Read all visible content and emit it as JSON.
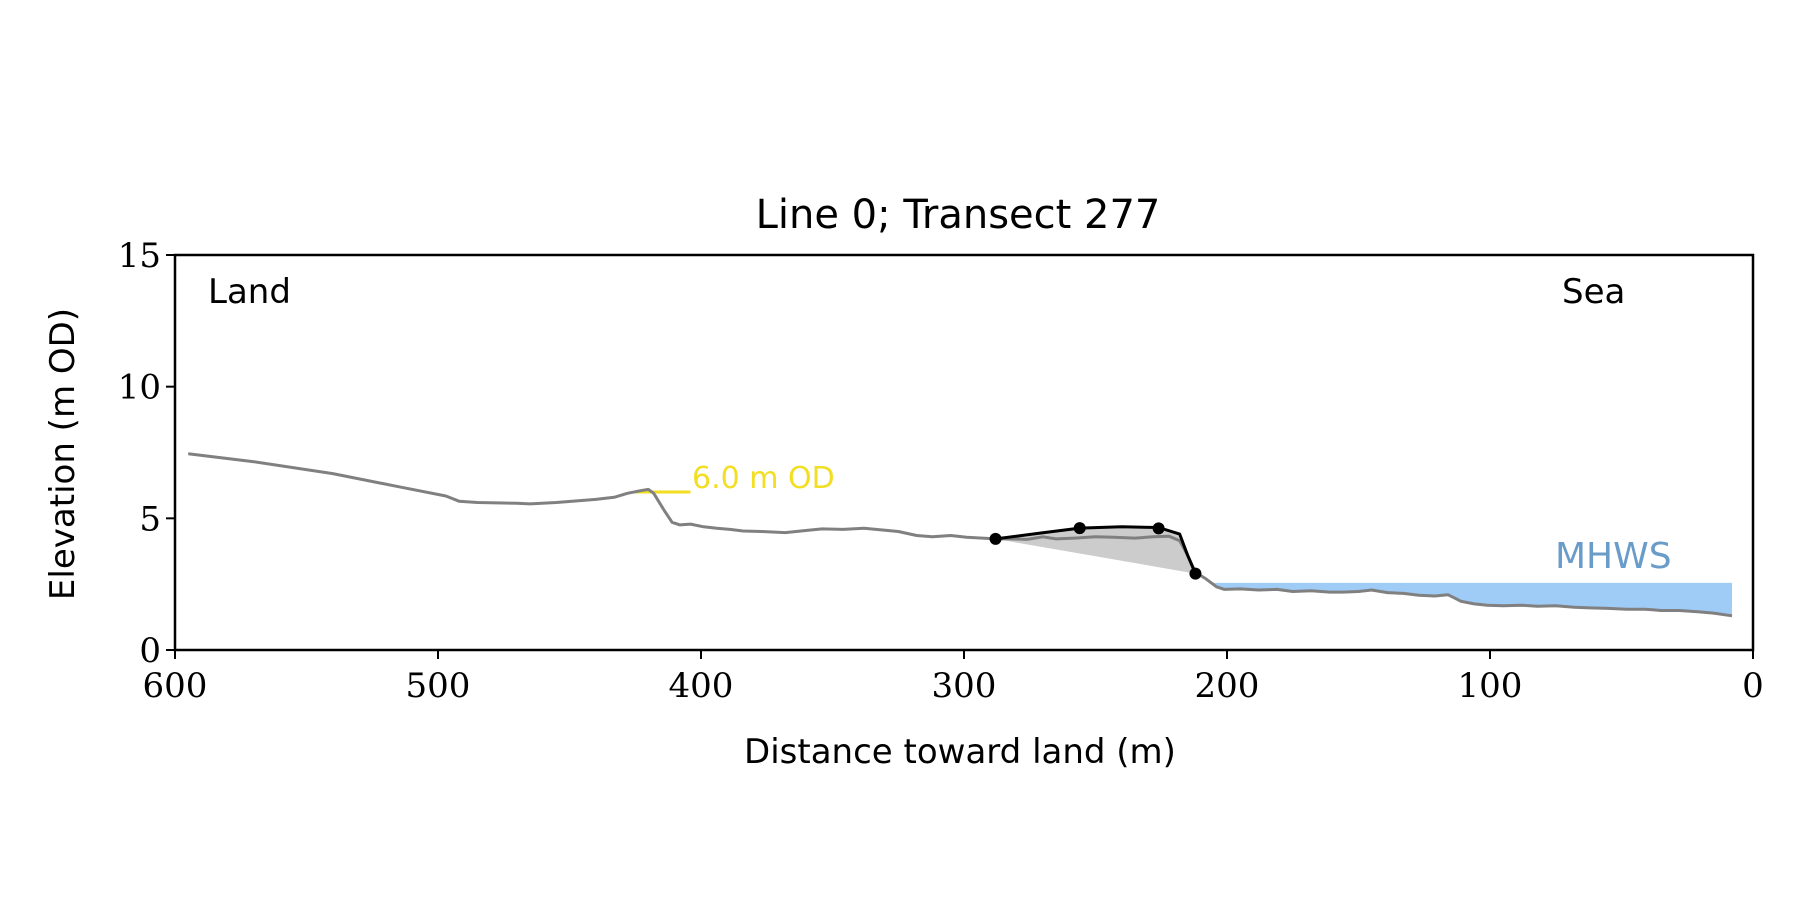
{
  "chart_data": {
    "type": "line",
    "title": "Line 0; Transect 277",
    "xlabel": "Distance toward land (m)",
    "ylabel": "Elevation (m OD)",
    "xlim": [
      600,
      0
    ],
    "ylim": [
      0,
      15
    ],
    "x_inverted": true,
    "grid": false,
    "xticks": [
      600,
      500,
      400,
      300,
      200,
      100,
      0
    ],
    "yticks": [
      0,
      5,
      10,
      15
    ],
    "annotations": {
      "left": "Land",
      "right": "Sea"
    },
    "threshold_line": {
      "label": "6.0 m OD",
      "y": 6.0,
      "x_range": [
        425,
        404
      ],
      "color": "#f2de22"
    },
    "mhws": {
      "label": "MHWS",
      "y": 2.55,
      "x_range": [
        207,
        8
      ],
      "fill_color": "#9fcbf7",
      "label_color": "#6a9cc9"
    },
    "profile": {
      "color": "#808080",
      "points": [
        [
          595,
          7.45
        ],
        [
          570,
          7.15
        ],
        [
          540,
          6.7
        ],
        [
          515,
          6.2
        ],
        [
          497,
          5.85
        ],
        [
          492,
          5.65
        ],
        [
          485,
          5.6
        ],
        [
          470,
          5.57
        ],
        [
          465,
          5.55
        ],
        [
          455,
          5.6
        ],
        [
          440,
          5.72
        ],
        [
          433,
          5.8
        ],
        [
          428,
          5.95
        ],
        [
          423,
          6.05
        ],
        [
          420,
          6.1
        ],
        [
          418,
          5.95
        ],
        [
          414,
          5.3
        ],
        [
          411,
          4.85
        ],
        [
          408,
          4.75
        ],
        [
          404,
          4.78
        ],
        [
          399,
          4.68
        ],
        [
          394,
          4.62
        ],
        [
          389,
          4.58
        ],
        [
          384,
          4.52
        ],
        [
          377,
          4.5
        ],
        [
          368,
          4.46
        ],
        [
          362,
          4.52
        ],
        [
          354,
          4.6
        ],
        [
          346,
          4.58
        ],
        [
          338,
          4.62
        ],
        [
          330,
          4.55
        ],
        [
          325,
          4.5
        ],
        [
          318,
          4.35
        ],
        [
          312,
          4.3
        ],
        [
          305,
          4.35
        ],
        [
          299,
          4.28
        ],
        [
          293,
          4.25
        ],
        [
          288,
          4.22
        ],
        [
          282,
          4.22
        ],
        [
          276,
          4.2
        ],
        [
          270,
          4.3
        ],
        [
          265,
          4.22
        ],
        [
          258,
          4.25
        ],
        [
          250,
          4.3
        ],
        [
          243,
          4.28
        ],
        [
          235,
          4.25
        ],
        [
          228,
          4.3
        ],
        [
          222,
          4.32
        ],
        [
          218,
          4.15
        ],
        [
          215,
          3.6
        ],
        [
          212,
          2.95
        ],
        [
          208,
          2.7
        ],
        [
          204,
          2.4
        ],
        [
          201,
          2.3
        ],
        [
          195,
          2.32
        ],
        [
          188,
          2.28
        ],
        [
          181,
          2.3
        ],
        [
          175,
          2.22
        ],
        [
          168,
          2.25
        ],
        [
          161,
          2.2
        ],
        [
          156,
          2.2
        ],
        [
          150,
          2.22
        ],
        [
          145,
          2.28
        ],
        [
          139,
          2.18
        ],
        [
          133,
          2.15
        ],
        [
          127,
          2.08
        ],
        [
          121,
          2.05
        ],
        [
          116,
          2.1
        ],
        [
          111,
          1.85
        ],
        [
          106,
          1.75
        ],
        [
          101,
          1.7
        ],
        [
          95,
          1.68
        ],
        [
          88,
          1.7
        ],
        [
          82,
          1.66
        ],
        [
          75,
          1.68
        ],
        [
          68,
          1.62
        ],
        [
          62,
          1.6
        ],
        [
          55,
          1.58
        ],
        [
          48,
          1.55
        ],
        [
          41,
          1.55
        ],
        [
          35,
          1.5
        ],
        [
          28,
          1.5
        ],
        [
          21,
          1.45
        ],
        [
          15,
          1.4
        ],
        [
          8,
          1.3
        ]
      ]
    },
    "dune_segment": {
      "color": "#000000",
      "points": [
        [
          288,
          4.22
        ],
        [
          270,
          4.45
        ],
        [
          256,
          4.63
        ],
        [
          240,
          4.68
        ],
        [
          226,
          4.65
        ],
        [
          218,
          4.4
        ],
        [
          215,
          3.6
        ],
        [
          212,
          2.9
        ]
      ],
      "markers": [
        [
          288,
          4.22
        ],
        [
          256,
          4.63
        ],
        [
          226,
          4.62
        ],
        [
          212,
          2.9
        ]
      ]
    },
    "dune_fill_color": "#cccccc"
  }
}
